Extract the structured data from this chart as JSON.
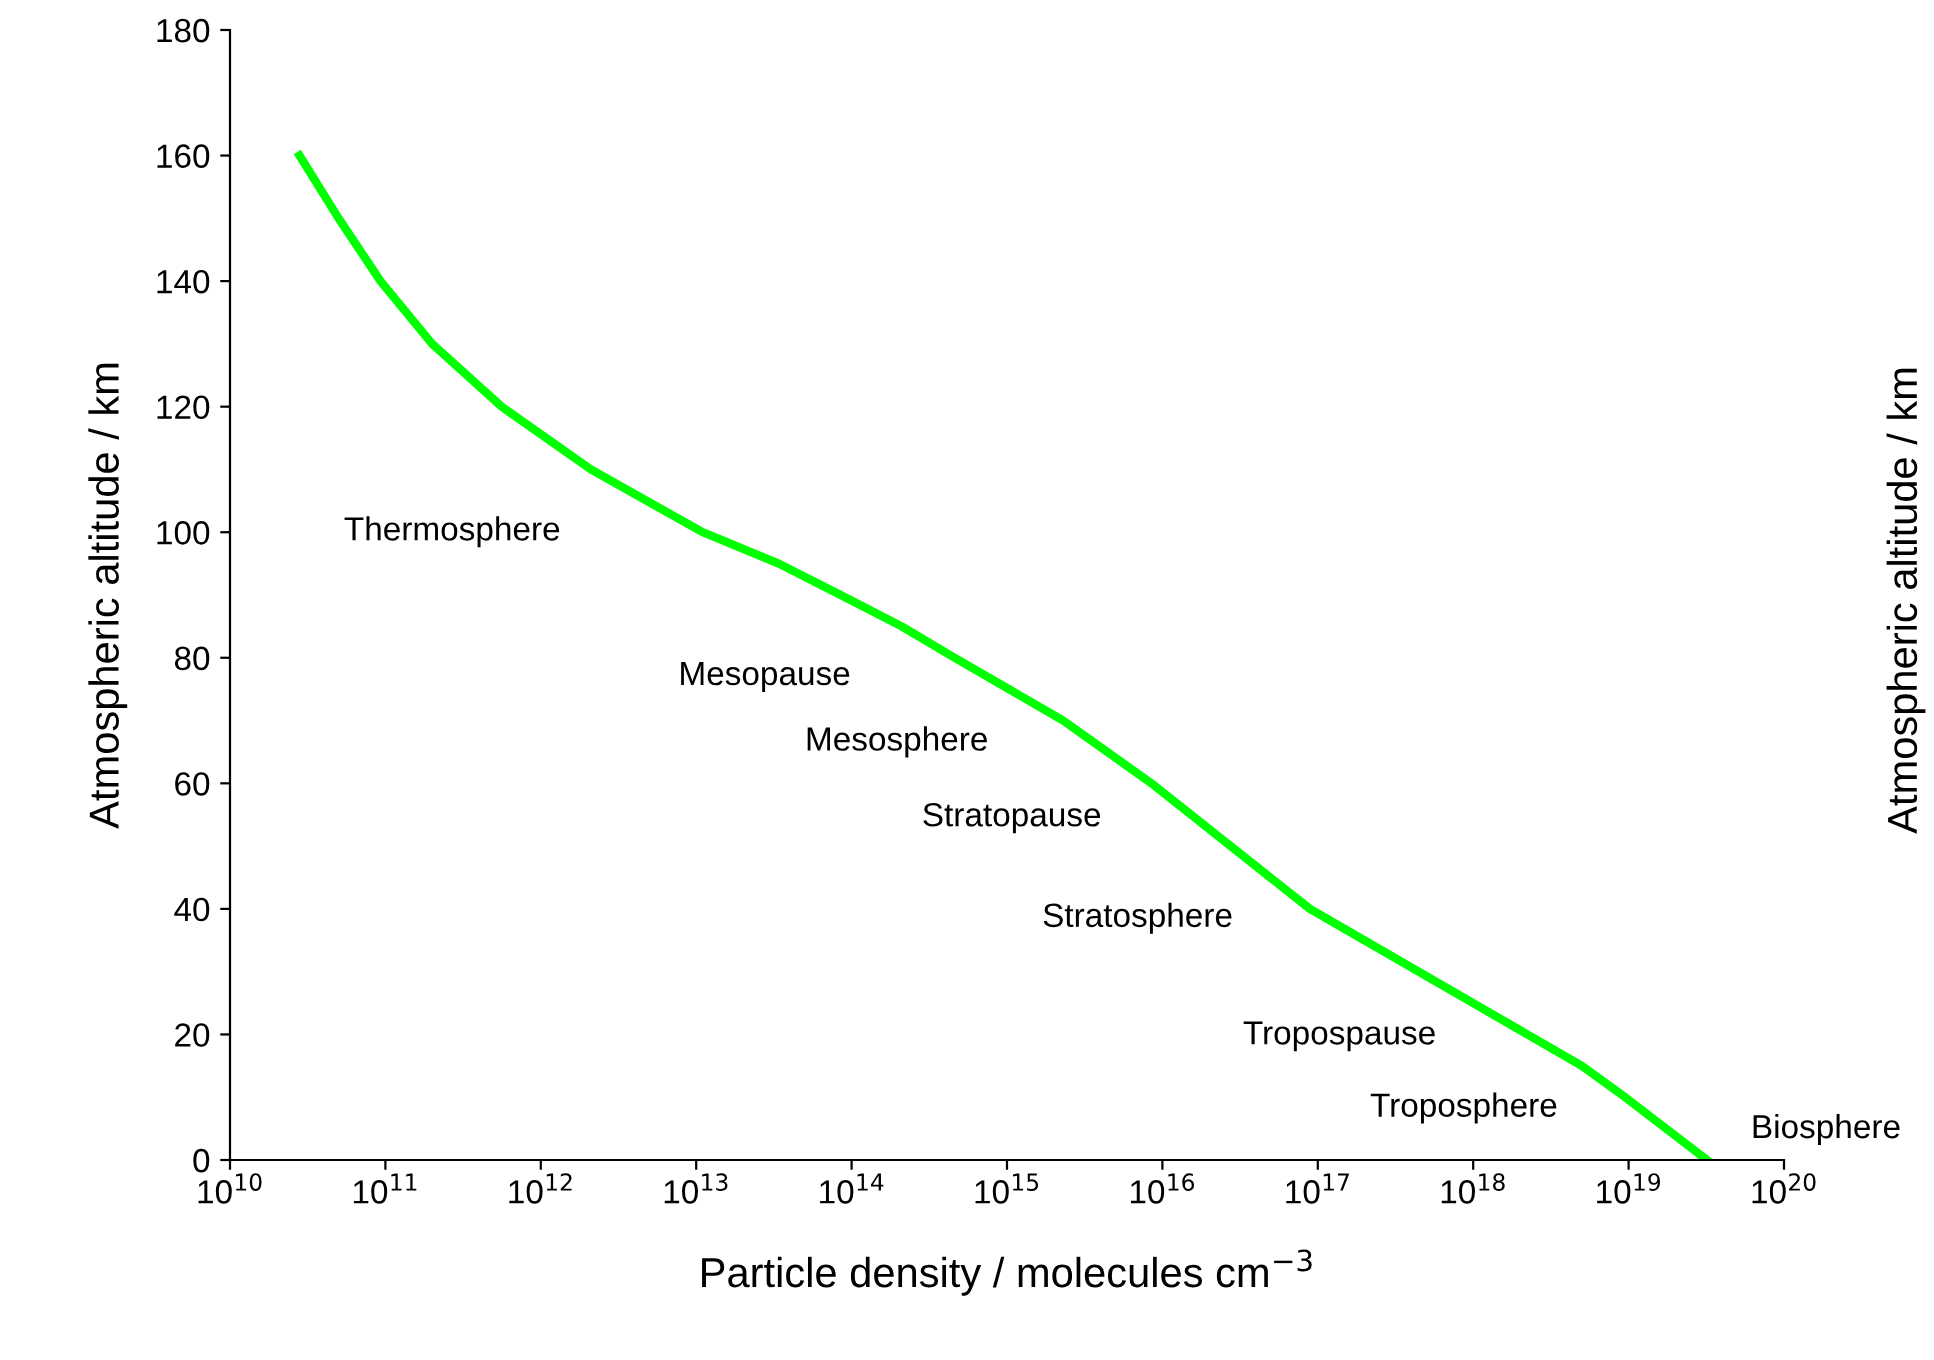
{
  "chart_data": {
    "type": "line",
    "xlabel": "Particle density / molecules cm$^{−3}$",
    "ylabel": "Atmospheric altitude / km",
    "y2label": "Atmospheric altitude / km",
    "log": "x",
    "grid": false,
    "marker": "none",
    "line_style": "solid",
    "xlim": [
      10000000000.0,
      1e+20
    ],
    "xticks": [
      {
        "value": 10000000000.0,
        "label": "10$^{10}$"
      },
      {
        "value": 100000000000.0,
        "label": "10$^{11}$"
      },
      {
        "value": 1000000000000.0,
        "label": "10$^{12}$"
      },
      {
        "value": 10000000000000.0,
        "label": "10$^{13}$"
      },
      {
        "value": 100000000000000.0,
        "label": "10$^{14}$"
      },
      {
        "value": 1000000000000000.0,
        "label": "10$^{15}$"
      },
      {
        "value": 1e+16,
        "label": "10$^{16}$"
      },
      {
        "value": 1e+17,
        "label": "10$^{17}$"
      },
      {
        "value": 1e+18,
        "label": "10$^{18}$"
      },
      {
        "value": 1e+19,
        "label": "10$^{19}$"
      },
      {
        "value": 1e+20,
        "label": "10$^{20}$"
      }
    ],
    "ylim": [
      0,
      180
    ],
    "yticks": [
      0,
      20,
      40,
      60,
      80,
      100,
      120,
      140,
      160,
      180
    ],
    "series": [
      {
        "color": "#00ff00",
        "x": [
          28000000000.0,
          50000000000.0,
          93000000000.0,
          200000000000.0,
          560000000000.0,
          2100000000000.0,
          11000000000000.0,
          34000000000000.0,
          85000000000000.0,
          210000000000000.0,
          460000000000000.0,
          2300000000000000.0,
          8500000000000000.0,
          8.9e+16,
          5e+18,
          9.5e+18,
          3.2e+19
        ],
        "values": [
          160,
          150,
          140,
          130,
          120,
          110,
          100,
          95,
          90,
          85,
          80,
          70,
          60,
          40,
          15,
          10,
          0
        ]
      }
    ],
    "annotations": [
      "Thermosphere",
      "Mesopause",
      "Mesosphere",
      "Stratopause",
      "Stratosphere",
      "Tropospause",
      "Troposphere",
      "Biosphere"
    ]
  }
}
